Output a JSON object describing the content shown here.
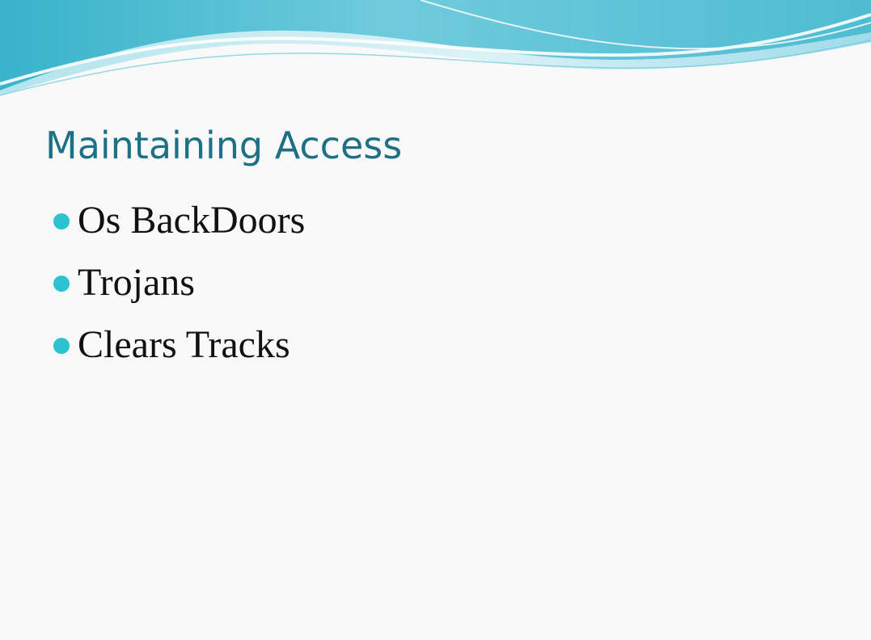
{
  "slide": {
    "title": "Maintaining Access",
    "bullets": [
      {
        "text": "Os BackDoors"
      },
      {
        "text": "Trojans"
      },
      {
        "text": "Clears Tracks"
      }
    ]
  },
  "colors": {
    "title": "#1d7086",
    "bullet": "#2cc2cf",
    "body_text": "#111111",
    "background": "#f9f9f9",
    "wave_dark": "#3fb6cd",
    "wave_light": "#bfe9f2"
  }
}
